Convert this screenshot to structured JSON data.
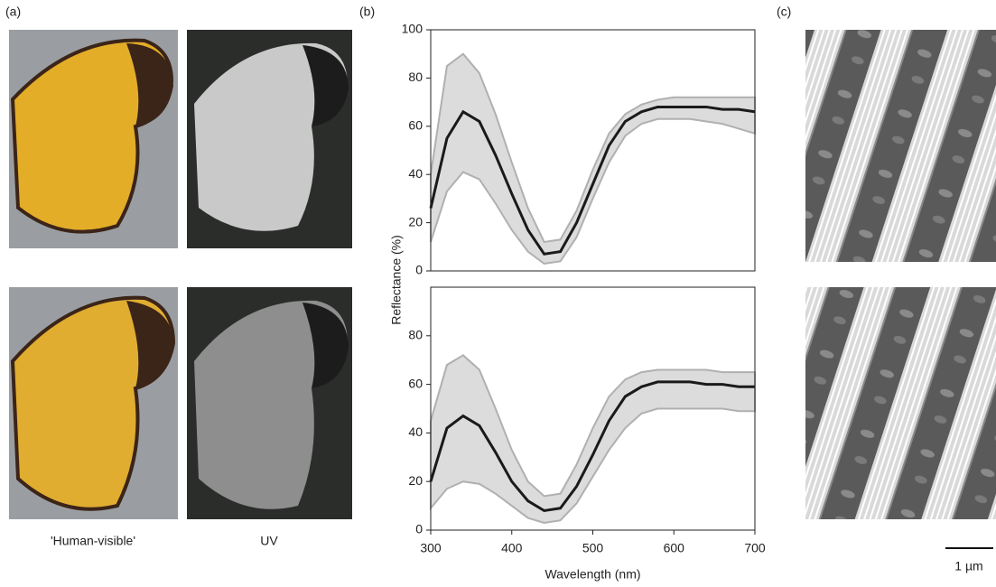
{
  "panels": {
    "a": {
      "label": "(a)",
      "captions": [
        "'Human-visible'",
        "UV"
      ]
    },
    "b": {
      "label": "(b)"
    },
    "c": {
      "label": "(c)",
      "scale_bar": "1 µm"
    }
  },
  "chart_data": [
    {
      "type": "line",
      "y_label": "Reflectance (%)",
      "x": [
        300,
        320,
        340,
        360,
        380,
        400,
        420,
        440,
        460,
        480,
        500,
        520,
        540,
        560,
        580,
        600,
        620,
        640,
        660,
        680,
        700
      ],
      "series": [
        {
          "color": "#1a1a1a",
          "values": [
            26,
            55,
            66,
            62,
            48,
            32,
            17,
            7,
            8,
            20,
            36,
            52,
            62,
            66,
            68,
            68,
            68,
            68,
            67,
            67,
            66
          ]
        }
      ],
      "band": {
        "color": "#dcdcdc",
        "edge": "#b0b0b0",
        "lower": [
          12,
          33,
          41,
          38,
          28,
          17,
          8,
          3,
          4,
          14,
          30,
          45,
          56,
          61,
          63,
          63,
          63,
          62,
          61,
          59,
          57
        ],
        "upper": [
          40,
          85,
          90,
          82,
          65,
          45,
          26,
          12,
          13,
          25,
          42,
          57,
          65,
          69,
          71,
          72,
          72,
          72,
          72,
          72,
          72
        ]
      },
      "xlim": [
        300,
        700
      ],
      "ylim": [
        0,
        100
      ],
      "yticks": [
        0,
        20,
        40,
        60,
        80,
        100
      ]
    },
    {
      "type": "line",
      "x_label": "Wavelength (nm)",
      "x": [
        300,
        320,
        340,
        360,
        380,
        400,
        420,
        440,
        460,
        480,
        500,
        520,
        540,
        560,
        580,
        600,
        620,
        640,
        660,
        680,
        700
      ],
      "series": [
        {
          "color": "#1a1a1a",
          "values": [
            20,
            42,
            47,
            43,
            32,
            20,
            12,
            8,
            9,
            18,
            31,
            45,
            55,
            59,
            61,
            61,
            61,
            60,
            60,
            59,
            59
          ]
        }
      ],
      "band": {
        "color": "#dcdcdc",
        "edge": "#b0b0b0",
        "lower": [
          9,
          17,
          20,
          19,
          15,
          10,
          5,
          3,
          4,
          11,
          22,
          33,
          42,
          48,
          50,
          50,
          50,
          50,
          50,
          49,
          49
        ],
        "upper": [
          45,
          68,
          72,
          66,
          50,
          33,
          20,
          14,
          15,
          27,
          42,
          55,
          62,
          65,
          66,
          66,
          66,
          66,
          65,
          65,
          65
        ]
      },
      "xlim": [
        300,
        700
      ],
      "ylim": [
        0,
        100
      ],
      "yticks": [
        0,
        20,
        40,
        60,
        80
      ],
      "xticks": [
        300,
        400,
        500,
        600,
        700
      ]
    }
  ]
}
